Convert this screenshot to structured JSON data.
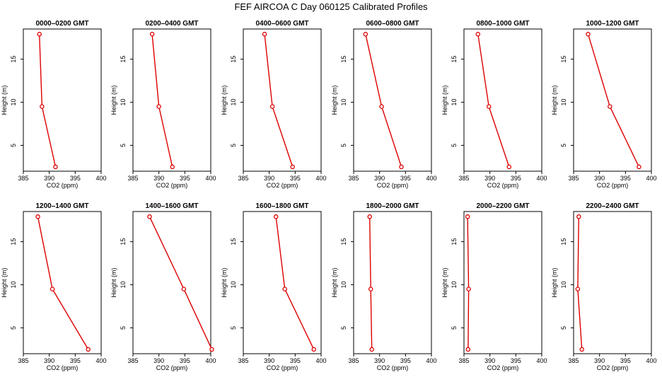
{
  "chart_data": {
    "type": "line",
    "title": "FEF AIRCOA C  Day 060125  Calibrated Profiles",
    "xlabel": "CO2 (ppm)",
    "ylabel": "Height (m)",
    "xlim": [
      385,
      400
    ],
    "ylim": [
      2,
      18.5
    ],
    "xticks": [
      "385",
      "390",
      "395",
      "400"
    ],
    "yticks": [
      "5",
      "10",
      "15"
    ],
    "heights": [
      2.5,
      9.5,
      17.9
    ],
    "colors": {
      "line": "#dd0000",
      "box": "#000000"
    },
    "panels": [
      {
        "title": "0000–0200 GMT",
        "values": [
          391.2,
          388.6,
          388.1
        ]
      },
      {
        "title": "0200–0400 GMT",
        "values": [
          392.6,
          390.0,
          388.7
        ]
      },
      {
        "title": "0400–0600 GMT",
        "values": [
          394.5,
          390.6,
          389.1
        ]
      },
      {
        "title": "0600–0800 GMT",
        "values": [
          394.2,
          390.4,
          387.3
        ]
      },
      {
        "title": "0800–1000 GMT",
        "values": [
          393.7,
          389.8,
          387.7
        ]
      },
      {
        "title": "1000–1200 GMT",
        "values": [
          397.6,
          392.0,
          387.8
        ]
      },
      {
        "title": "1200–1400 GMT",
        "values": [
          397.5,
          390.6,
          387.8
        ]
      },
      {
        "title": "1400–1600 GMT",
        "values": [
          400.2,
          394.8,
          388.2
        ]
      },
      {
        "title": "1600–1800 GMT",
        "values": [
          398.6,
          393.0,
          391.3
        ]
      },
      {
        "title": "1800–2000 GMT",
        "values": [
          388.5,
          388.3,
          388.1
        ]
      },
      {
        "title": "2000–2200 GMT",
        "values": [
          385.8,
          385.9,
          385.7
        ]
      },
      {
        "title": "2200–2400 GMT",
        "values": [
          386.6,
          385.8,
          386.0
        ]
      }
    ]
  }
}
